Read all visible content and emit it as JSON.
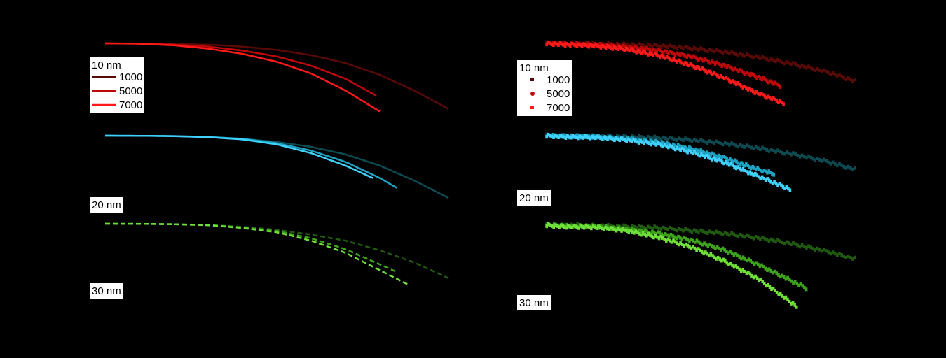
{
  "chart_data": [
    {
      "type": "line",
      "panel": "left",
      "colors": [
        "#5a0a06",
        "#c10808",
        "#ff1a1a"
      ],
      "groups": [
        {
          "label": "10 nm",
          "legend": true,
          "series": [
            {
              "name": "1000",
              "color": "#5a0a06",
              "points": [
                [
                  0.0,
                  1.0
                ],
                [
                  0.1,
                  0.999
                ],
                [
                  0.2,
                  0.996
                ],
                [
                  0.3,
                  0.99
                ],
                [
                  0.4,
                  0.975
                ],
                [
                  0.5,
                  0.95
                ],
                [
                  0.6,
                  0.91
                ],
                [
                  0.7,
                  0.85
                ],
                [
                  0.8,
                  0.76
                ],
                [
                  0.9,
                  0.64
                ],
                [
                  1.0,
                  0.5
                ]
              ]
            },
            {
              "name": "5000",
              "color": "#c10808",
              "points": [
                [
                  0.0,
                  1.0
                ],
                [
                  0.1,
                  0.998
                ],
                [
                  0.2,
                  0.99
                ],
                [
                  0.3,
                  0.975
                ],
                [
                  0.4,
                  0.945
                ],
                [
                  0.5,
                  0.9
                ],
                [
                  0.6,
                  0.83
                ],
                [
                  0.7,
                  0.73
                ],
                [
                  0.79,
                  0.6
                ]
              ]
            },
            {
              "name": "7000",
              "color": "#ff1a1a",
              "points": [
                [
                  0.0,
                  1.0
                ],
                [
                  0.1,
                  0.997
                ],
                [
                  0.2,
                  0.985
                ],
                [
                  0.3,
                  0.96
                ],
                [
                  0.4,
                  0.92
                ],
                [
                  0.5,
                  0.86
                ],
                [
                  0.6,
                  0.77
                ],
                [
                  0.7,
                  0.64
                ],
                [
                  0.8,
                  0.48
                ]
              ]
            }
          ]
        },
        {
          "label": "20 nm",
          "legend": false,
          "series": [
            {
              "name": "1000",
              "color": "#0d4a52",
              "points": [
                [
                  0.0,
                  1.0
                ],
                [
                  0.1,
                  0.999
                ],
                [
                  0.2,
                  0.996
                ],
                [
                  0.3,
                  0.99
                ],
                [
                  0.4,
                  0.975
                ],
                [
                  0.5,
                  0.95
                ],
                [
                  0.6,
                  0.91
                ],
                [
                  0.7,
                  0.85
                ],
                [
                  0.8,
                  0.76
                ],
                [
                  0.9,
                  0.64
                ],
                [
                  1.0,
                  0.5
                ]
              ]
            },
            {
              "name": "5000",
              "color": "#1ea3c3",
              "points": [
                [
                  0.0,
                  1.0
                ],
                [
                  0.1,
                  0.999
                ],
                [
                  0.2,
                  0.997
                ],
                [
                  0.3,
                  0.99
                ],
                [
                  0.4,
                  0.975
                ],
                [
                  0.5,
                  0.94
                ],
                [
                  0.6,
                  0.88
                ],
                [
                  0.7,
                  0.79
                ],
                [
                  0.8,
                  0.66
                ],
                [
                  0.85,
                  0.58
                ]
              ]
            },
            {
              "name": "7000",
              "color": "#3fd2ff",
              "points": [
                [
                  0.0,
                  1.0
                ],
                [
                  0.1,
                  0.999
                ],
                [
                  0.2,
                  0.996
                ],
                [
                  0.3,
                  0.988
                ],
                [
                  0.4,
                  0.97
                ],
                [
                  0.5,
                  0.93
                ],
                [
                  0.6,
                  0.86
                ],
                [
                  0.7,
                  0.76
                ],
                [
                  0.78,
                  0.66
                ]
              ]
            }
          ]
        },
        {
          "label": "30 nm",
          "legend": false,
          "series": [
            {
              "name": "1000",
              "color": "#1f5a0f",
              "points": [
                [
                  0.0,
                  1.0
                ],
                [
                  0.1,
                  0.999
                ],
                [
                  0.2,
                  0.996
                ],
                [
                  0.3,
                  0.99
                ],
                [
                  0.4,
                  0.975
                ],
                [
                  0.5,
                  0.95
                ],
                [
                  0.6,
                  0.91
                ],
                [
                  0.7,
                  0.86
                ],
                [
                  0.8,
                  0.78
                ],
                [
                  0.9,
                  0.68
                ],
                [
                  1.0,
                  0.55
                ]
              ]
            },
            {
              "name": "5000",
              "color": "#3da41c",
              "points": [
                [
                  0.0,
                  1.0
                ],
                [
                  0.1,
                  0.999
                ],
                [
                  0.2,
                  0.996
                ],
                [
                  0.3,
                  0.99
                ],
                [
                  0.4,
                  0.97
                ],
                [
                  0.5,
                  0.94
                ],
                [
                  0.6,
                  0.88
                ],
                [
                  0.7,
                  0.79
                ],
                [
                  0.85,
                  0.6
                ]
              ]
            },
            {
              "name": "7000",
              "color": "#6fe03a",
              "points": [
                [
                  0.0,
                  1.0
                ],
                [
                  0.1,
                  0.999
                ],
                [
                  0.2,
                  0.996
                ],
                [
                  0.3,
                  0.988
                ],
                [
                  0.4,
                  0.965
                ],
                [
                  0.5,
                  0.93
                ],
                [
                  0.6,
                  0.86
                ],
                [
                  0.7,
                  0.76
                ],
                [
                  0.88,
                  0.5
                ]
              ]
            }
          ]
        }
      ]
    },
    {
      "type": "scatter",
      "panel": "right",
      "colors": [
        "#5a0a06",
        "#c10808",
        "#ff1a1a"
      ],
      "groups": [
        {
          "label": "10 nm",
          "legend": true,
          "series": [
            {
              "name": "1000",
              "color": "#5a0a06",
              "points": [
                [
                  0.05,
                  1.0
                ],
                [
                  0.1,
                  1.0
                ],
                [
                  0.2,
                  0.995
                ],
                [
                  0.3,
                  0.99
                ],
                [
                  0.4,
                  0.98
                ],
                [
                  0.5,
                  0.96
                ],
                [
                  0.6,
                  0.93
                ],
                [
                  0.7,
                  0.89
                ],
                [
                  0.8,
                  0.84
                ],
                [
                  0.9,
                  0.78
                ],
                [
                  1.0,
                  0.7
                ]
              ]
            },
            {
              "name": "5000",
              "color": "#c10808",
              "points": [
                [
                  0.05,
                  1.0
                ],
                [
                  0.1,
                  0.995
                ],
                [
                  0.2,
                  0.99
                ],
                [
                  0.3,
                  0.97
                ],
                [
                  0.4,
                  0.94
                ],
                [
                  0.5,
                  0.89
                ],
                [
                  0.6,
                  0.82
                ],
                [
                  0.7,
                  0.73
                ],
                [
                  0.77,
                  0.66
                ]
              ]
            },
            {
              "name": "7000",
              "color": "#ff1a1a",
              "points": [
                [
                  0.05,
                  1.0
                ],
                [
                  0.1,
                  0.99
                ],
                [
                  0.2,
                  0.98
                ],
                [
                  0.3,
                  0.95
                ],
                [
                  0.4,
                  0.9
                ],
                [
                  0.5,
                  0.82
                ],
                [
                  0.6,
                  0.72
                ],
                [
                  0.7,
                  0.6
                ],
                [
                  0.78,
                  0.52
                ]
              ]
            }
          ]
        },
        {
          "label": "20 nm",
          "legend": false,
          "series": [
            {
              "name": "1000",
              "color": "#0d4a52",
              "points": [
                [
                  0.05,
                  1.0
                ],
                [
                  0.1,
                  1.0
                ],
                [
                  0.2,
                  0.995
                ],
                [
                  0.3,
                  0.99
                ],
                [
                  0.4,
                  0.98
                ],
                [
                  0.5,
                  0.96
                ],
                [
                  0.6,
                  0.93
                ],
                [
                  0.7,
                  0.89
                ],
                [
                  0.8,
                  0.84
                ],
                [
                  0.9,
                  0.78
                ],
                [
                  1.0,
                  0.7
                ]
              ]
            },
            {
              "name": "5000",
              "color": "#1ea3c3",
              "points": [
                [
                  0.05,
                  1.0
                ],
                [
                  0.1,
                  0.995
                ],
                [
                  0.2,
                  0.99
                ],
                [
                  0.3,
                  0.97
                ],
                [
                  0.4,
                  0.94
                ],
                [
                  0.5,
                  0.88
                ],
                [
                  0.6,
                  0.8
                ],
                [
                  0.7,
                  0.7
                ],
                [
                  0.75,
                  0.66
                ]
              ]
            },
            {
              "name": "7000",
              "color": "#3fd2ff",
              "points": [
                [
                  0.05,
                  1.0
                ],
                [
                  0.1,
                  0.99
                ],
                [
                  0.2,
                  0.985
                ],
                [
                  0.3,
                  0.96
                ],
                [
                  0.4,
                  0.92
                ],
                [
                  0.5,
                  0.85
                ],
                [
                  0.6,
                  0.76
                ],
                [
                  0.7,
                  0.64
                ],
                [
                  0.8,
                  0.52
                ]
              ]
            }
          ]
        },
        {
          "label": "30 nm",
          "legend": false,
          "series": [
            {
              "name": "1000",
              "color": "#1f5a0f",
              "points": [
                [
                  0.05,
                  1.0
                ],
                [
                  0.1,
                  1.0
                ],
                [
                  0.2,
                  0.995
                ],
                [
                  0.3,
                  0.99
                ],
                [
                  0.4,
                  0.98
                ],
                [
                  0.5,
                  0.96
                ],
                [
                  0.6,
                  0.94
                ],
                [
                  0.7,
                  0.91
                ],
                [
                  0.8,
                  0.87
                ],
                [
                  0.9,
                  0.82
                ],
                [
                  1.0,
                  0.76
                ]
              ]
            },
            {
              "name": "5000",
              "color": "#3da41c",
              "points": [
                [
                  0.05,
                  1.0
                ],
                [
                  0.1,
                  0.995
                ],
                [
                  0.2,
                  0.99
                ],
                [
                  0.3,
                  0.97
                ],
                [
                  0.4,
                  0.94
                ],
                [
                  0.5,
                  0.89
                ],
                [
                  0.6,
                  0.82
                ],
                [
                  0.7,
                  0.72
                ],
                [
                  0.85,
                  0.55
                ]
              ]
            },
            {
              "name": "7000",
              "color": "#6fe03a",
              "points": [
                [
                  0.05,
                  1.0
                ],
                [
                  0.1,
                  0.99
                ],
                [
                  0.2,
                  0.985
                ],
                [
                  0.3,
                  0.96
                ],
                [
                  0.4,
                  0.91
                ],
                [
                  0.5,
                  0.84
                ],
                [
                  0.6,
                  0.74
                ],
                [
                  0.7,
                  0.62
                ],
                [
                  0.82,
                  0.42
                ]
              ]
            }
          ]
        }
      ]
    }
  ]
}
